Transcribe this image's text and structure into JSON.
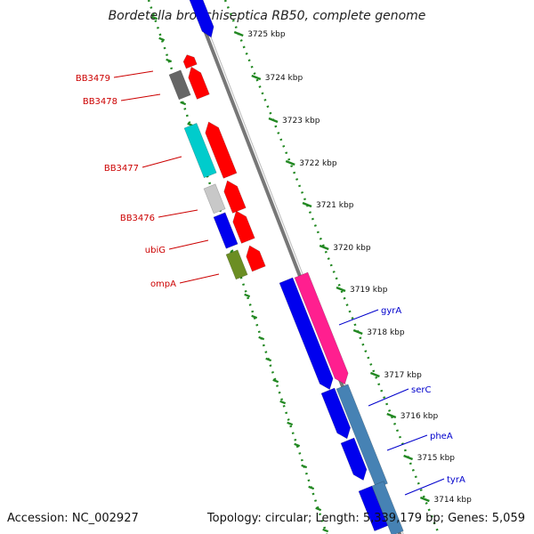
{
  "title": "Bordetella bronchiseptica RB50, complete genome",
  "footer": {
    "accession": "Accession: NC_002927",
    "topology": "Topology: circular; Length: 5,339,179 bp; Genes: 5,059"
  },
  "ticks": [
    {
      "label": "3725 kbp",
      "pos": 3725
    },
    {
      "label": "3724 kbp",
      "pos": 3724
    },
    {
      "label": "3723 kbp",
      "pos": 3723
    },
    {
      "label": "3722 kbp",
      "pos": 3722
    },
    {
      "label": "3721 kbp",
      "pos": 3721
    },
    {
      "label": "3720 kbp",
      "pos": 3720
    },
    {
      "label": "3719 kbp",
      "pos": 3719
    },
    {
      "label": "3718 kbp",
      "pos": 3718
    },
    {
      "label": "3717 kbp",
      "pos": 3717
    },
    {
      "label": "3716 kbp",
      "pos": 3716
    },
    {
      "label": "3715 kbp",
      "pos": 3715
    },
    {
      "label": "3714 kbp",
      "pos": 3714
    }
  ],
  "gene_labels": {
    "left": [
      "BB3479",
      "BB3478",
      "BB3477",
      "BB3476",
      "ubiG",
      "ompA"
    ],
    "right": [
      "gyrA",
      "serC",
      "pheA",
      "tyrA"
    ]
  },
  "colors": {
    "label_left": "#cc0000",
    "label_right": "#0000cc",
    "tick_green": "#228822",
    "backbone": "#777777",
    "gene_red": "#ff0000",
    "gene_blue": "#0000ee",
    "gene_magenta": "#ff1f8f",
    "gene_steel": "#4682b4",
    "gene_cyan": "#00cccc",
    "gene_grey": "#666666",
    "gene_lightgrey": "#c8c8c8",
    "gene_olive": "#6b8e23"
  }
}
